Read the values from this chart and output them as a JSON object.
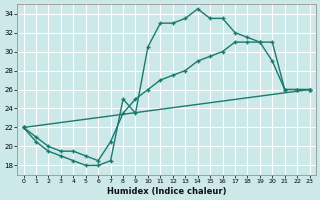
{
  "xlabel": "Humidex (Indice chaleur)",
  "bg_color": "#cce8e8",
  "grid_color": "#ffffff",
  "line_color": "#1a7a6e",
  "xlim": [
    -0.5,
    23.5
  ],
  "ylim": [
    17.0,
    35.0
  ],
  "xticks": [
    0,
    1,
    2,
    3,
    4,
    5,
    6,
    7,
    8,
    9,
    10,
    11,
    12,
    13,
    14,
    15,
    16,
    17,
    18,
    19,
    20,
    21,
    22,
    23
  ],
  "yticks": [
    18,
    20,
    22,
    24,
    26,
    28,
    30,
    32,
    34
  ],
  "series1_x": [
    0,
    1,
    2,
    3,
    4,
    5,
    6,
    7,
    8,
    9,
    10,
    11,
    12,
    13,
    14,
    15,
    16,
    17,
    18,
    19,
    20,
    21,
    22,
    23
  ],
  "series1_y": [
    22,
    20.5,
    19.5,
    19,
    18.5,
    18,
    18,
    18.5,
    25,
    23.5,
    30.5,
    33,
    33,
    33.5,
    34.5,
    33.5,
    33.5,
    32,
    31.5,
    31,
    29,
    26,
    26,
    26
  ],
  "series2_x": [
    0,
    23
  ],
  "series2_y": [
    22,
    26
  ],
  "series3_x": [
    0,
    1,
    2,
    3,
    4,
    5,
    6,
    7,
    8,
    9,
    10,
    11,
    12,
    13,
    14,
    15,
    16,
    17,
    18,
    19,
    20,
    21,
    22,
    23
  ],
  "series3_y": [
    22,
    21,
    20,
    19.5,
    19.5,
    19,
    18.5,
    20.5,
    23.5,
    25,
    26,
    27,
    27.5,
    28,
    29,
    29.5,
    30,
    31,
    31,
    31,
    31,
    26,
    26,
    26
  ]
}
